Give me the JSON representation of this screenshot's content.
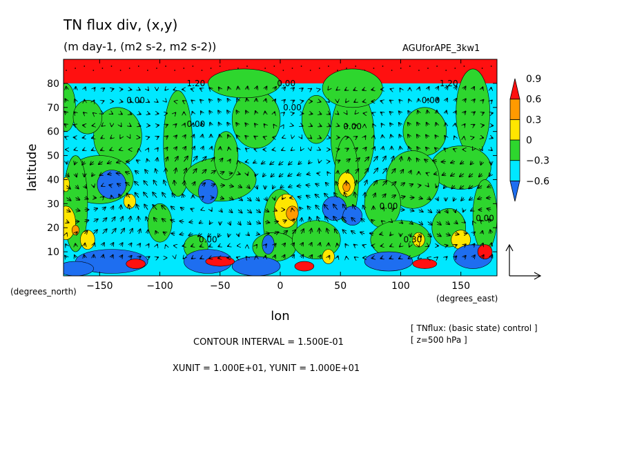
{
  "header": {
    "title": "TN flux div, (x,y)",
    "units": "(m day-1, (m2 s-2, m2 s-2))",
    "run_name": "AGUforAPE_3kw1"
  },
  "footer": {
    "contour_interval": "CONTOUR INTERVAL = 1.500E-01",
    "vector_units": "XUNIT = 1.000E+01, YUNIT = 1.000E+01",
    "info_line1": "[ TNflux: (basic state) control ]",
    "info_line2": "[ z=500 hPa ]"
  },
  "chart_data": {
    "type": "heatmap",
    "subtype": "filled-contour with vector overlay",
    "xlabel": "lon",
    "ylabel": "latitude",
    "x_unit_label": "(degrees_east)",
    "y_unit_label": "(degrees_north)",
    "xlim": [
      -180,
      180
    ],
    "ylim": [
      0,
      90
    ],
    "x_ticks": [
      -150,
      -100,
      -50,
      0,
      50,
      100,
      150
    ],
    "x_tick_labels": [
      "−150",
      "−100",
      "−50",
      "0",
      "50",
      "100",
      "150"
    ],
    "y_ticks": [
      10,
      20,
      30,
      40,
      50,
      60,
      70,
      80
    ],
    "y_tick_labels": [
      "10",
      "20",
      "30",
      "40",
      "50",
      "60",
      "70",
      "80"
    ],
    "colorbar": {
      "levels": [
        -0.6,
        -0.3,
        0,
        0.3,
        0.6,
        0.9
      ],
      "labels": [
        "−0.6",
        "−0.3",
        "0",
        "0.3",
        "0.6",
        "0.9"
      ],
      "colors": [
        "#1e6ef0",
        "#00e8ff",
        "#2ed62e",
        "#ffe600",
        "#ff9a00",
        "#ff1010"
      ],
      "extend": "both"
    },
    "contour_labels": [
      {
        "text": "1.20",
        "lon": -70,
        "lat": 80
      },
      {
        "text": "0.00",
        "lon": 5,
        "lat": 80
      },
      {
        "text": "1.20",
        "lon": 140,
        "lat": 80
      },
      {
        "text": "0.00",
        "lon": -120,
        "lat": 73
      },
      {
        "text": "0.00",
        "lon": -70,
        "lat": 63
      },
      {
        "text": "0.00",
        "lon": 10,
        "lat": 70
      },
      {
        "text": "0.00",
        "lon": 60,
        "lat": 62
      },
      {
        "text": "0.00",
        "lon": 125,
        "lat": 73
      },
      {
        "text": "0.00",
        "lon": -60,
        "lat": 15
      },
      {
        "text": "0.00",
        "lon": 90,
        "lat": 29
      },
      {
        "text": "0.30",
        "lon": 110,
        "lat": 15
      },
      {
        "text": "0.00",
        "lon": 170,
        "lat": 24
      }
    ]
  }
}
